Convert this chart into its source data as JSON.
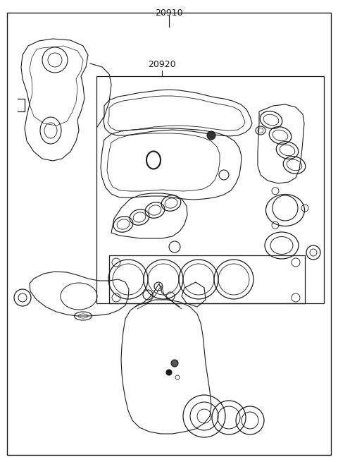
{
  "background_color": "#ffffff",
  "line_color": "#1a1a1a",
  "label_20910": "20910",
  "label_20920": "20920",
  "fig_width": 4.8,
  "fig_height": 6.55,
  "dpi": 100
}
